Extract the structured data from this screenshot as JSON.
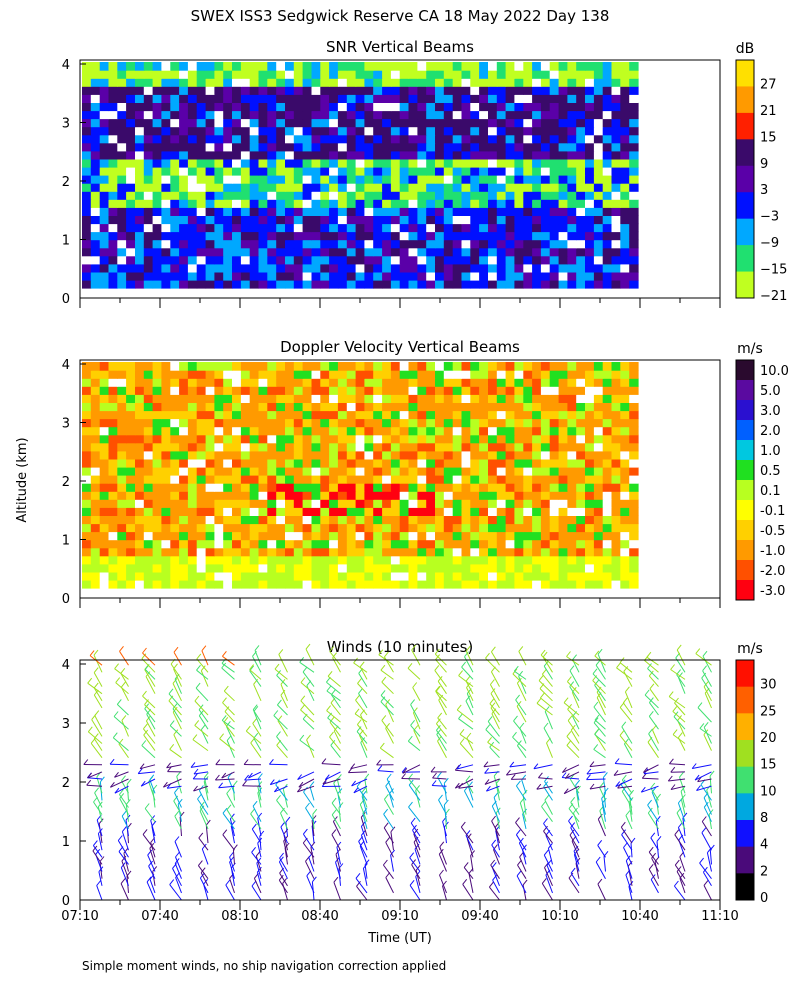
{
  "figure": {
    "title": "SWEX ISS3 Sedgwick Reserve CA  18 May 2022 Day 138",
    "ylabel": "Altitude (km)",
    "xlabel": "Time (UT)",
    "footnote": "Simple moment winds, no ship navigation correction applied"
  },
  "chart_data": [
    {
      "type": "heatmap",
      "title": "SNR Vertical Beams",
      "colorbar_unit": "dB",
      "xlim": [
        "07:10",
        "11:10"
      ],
      "ylim": [
        0,
        4
      ],
      "ytick_labels": [
        "0",
        "1",
        "2",
        "3",
        "4"
      ],
      "colorbar_ticks": [
        "27",
        "21",
        "15",
        "9",
        "3",
        "−3",
        "−9",
        "−15",
        "−21"
      ],
      "colorbar_colors": [
        "#ffe000",
        "#ff9a00",
        "#ff2000",
        "#3a0a6a",
        "#5a00a8",
        "#0010ff",
        "#00a8ff",
        "#20e070",
        "#c0ff20"
      ],
      "grid": false
    },
    {
      "type": "heatmap",
      "title": "Doppler Velocity Vertical Beams",
      "colorbar_unit": "m/s",
      "xlim": [
        "07:10",
        "11:10"
      ],
      "ylim": [
        0,
        4
      ],
      "ytick_labels": [
        "0",
        "1",
        "2",
        "3",
        "4"
      ],
      "colorbar_ticks": [
        "10.0",
        "5.0",
        "3.0",
        "2.0",
        "1.0",
        "0.5",
        "0.1",
        "-0.1",
        "-0.5",
        "-1.0",
        "-2.0",
        "-3.0"
      ],
      "colorbar_colors": [
        "#2a0a2e",
        "#5a0aa0",
        "#2a10d0",
        "#0060ff",
        "#00c8e0",
        "#20e020",
        "#b8ff20",
        "#ffff00",
        "#ffd000",
        "#ff9a00",
        "#ff5000",
        "#ff0010"
      ],
      "grid": false
    },
    {
      "type": "scatter",
      "title": "Winds (10 minutes)",
      "colorbar_unit": "m/s",
      "xlim": [
        "07:10",
        "11:10"
      ],
      "ylim": [
        0,
        4
      ],
      "ytick_labels": [
        "0",
        "1",
        "2",
        "3",
        "4"
      ],
      "xtick_labels": [
        "07:10",
        "07:40",
        "08:10",
        "08:40",
        "09:10",
        "09:40",
        "10:10",
        "10:40",
        "11:10"
      ],
      "colorbar_ticks": [
        "30",
        "25",
        "20",
        "15",
        "10",
        "8",
        "4",
        "2",
        "0"
      ],
      "colorbar_colors": [
        "#ff1000",
        "#ff6000",
        "#ffb000",
        "#a0e020",
        "#40e070",
        "#00a8e0",
        "#1010ff",
        "#4a0a7a",
        "#000000"
      ],
      "grid": false
    }
  ]
}
